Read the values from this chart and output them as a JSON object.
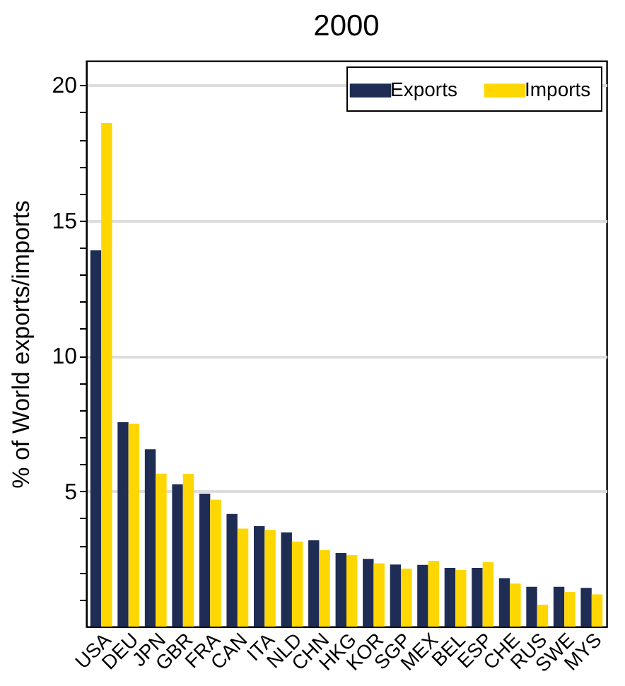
{
  "chart_data": {
    "type": "bar",
    "title": "2000",
    "ylabel": "% of World exports/imports",
    "categories": [
      "USA",
      "DEU",
      "JPN",
      "GBR",
      "FRA",
      "CAN",
      "ITA",
      "NLD",
      "CHN",
      "HKG",
      "KOR",
      "SGP",
      "MEX",
      "BEL",
      "ESP",
      "CHE",
      "RUS",
      "SWE",
      "MYS"
    ],
    "series": [
      {
        "name": "Exports",
        "color": "#1f2d54",
        "values": [
          13.9,
          7.55,
          6.55,
          5.26,
          4.91,
          4.16,
          3.71,
          3.48,
          3.19,
          2.72,
          2.5,
          2.29,
          2.28,
          2.17,
          2.17,
          1.79,
          1.47,
          1.47,
          1.43
        ]
      },
      {
        "name": "Imports",
        "color": "#ffd700",
        "values": [
          18.6,
          7.5,
          5.65,
          5.64,
          4.69,
          3.62,
          3.57,
          3.14,
          2.83,
          2.64,
          2.34,
          2.14,
          2.43,
          2.09,
          2.38,
          1.59,
          0.81,
          1.28,
          1.19
        ]
      }
    ],
    "ylim": [
      0,
      20.9
    ],
    "yticks": [
      {
        "value": 1,
        "label": null
      },
      {
        "value": 2,
        "label": null
      },
      {
        "value": 3,
        "label": null
      },
      {
        "value": 4,
        "label": null
      },
      5,
      {
        "value": 6,
        "label": null
      },
      {
        "value": 7,
        "label": null
      },
      {
        "value": 8,
        "label": null
      },
      {
        "value": 9,
        "label": null
      },
      10,
      {
        "value": 11,
        "label": null
      },
      {
        "value": 12,
        "label": null
      },
      {
        "value": 13,
        "label": null
      },
      {
        "value": 14,
        "label": null
      },
      15,
      {
        "value": 16,
        "label": null
      },
      {
        "value": 17,
        "label": null
      },
      {
        "value": 18,
        "label": null
      },
      {
        "value": 19,
        "label": null
      },
      20
    ],
    "grid": "y",
    "legend": "top right"
  }
}
